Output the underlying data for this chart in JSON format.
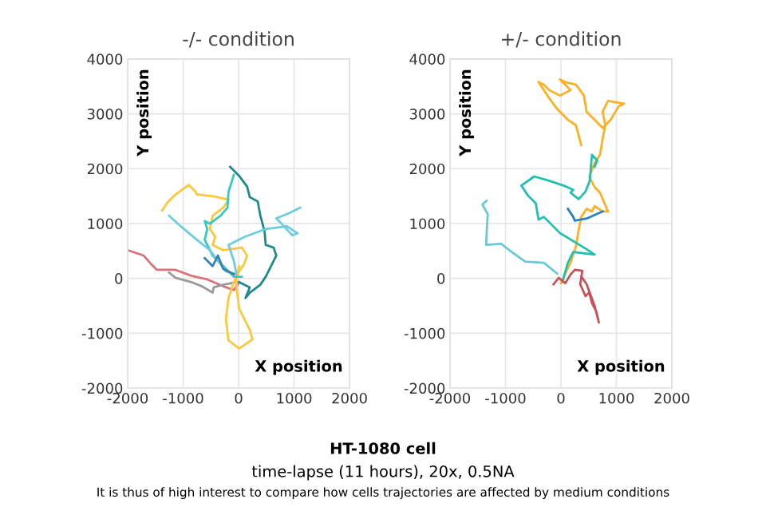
{
  "chart_data": [
    {
      "type": "line",
      "title": "-/- condition",
      "xlabel": "X position",
      "ylabel": "Y position",
      "xlim": [
        -2000,
        2000
      ],
      "ylim": [
        -2000,
        4000
      ],
      "xticks": [
        -2000,
        -1000,
        0,
        1000,
        2000
      ],
      "yticks": [
        -2000,
        -1000,
        0,
        1000,
        2000,
        3000,
        4000
      ],
      "grid": true,
      "marker": "none",
      "line_style": "solid",
      "annotations": [
        "HT-1080 cell",
        "time-lapse (11 hours), 20x, 0.5NA",
        "It is thus of high interest to compare how cells trajectories are affected by medium conditions"
      ],
      "series": [
        {
          "color": "#d9727a",
          "x": [
            -2000,
            -1713,
            -1569,
            -1474,
            -1139,
            -852,
            -565,
            -278,
            -86,
            10
          ],
          "values": [
            513,
            416,
            252,
            155,
            155,
            48,
            -19,
            -145,
            -213,
            -68
          ]
        },
        {
          "color": "#9a9a9a",
          "x": [
            -1254,
            -1139,
            -852,
            -660,
            -469,
            -450,
            -278,
            -38
          ],
          "values": [
            106,
            10,
            -68,
            -145,
            -261,
            -164,
            -116,
            -68
          ]
        },
        {
          "color": "#ffc83a",
          "x": [
            -1378,
            -1282,
            -1139,
            -900,
            -775,
            -756,
            -469,
            -182,
            -278,
            -469,
            -517,
            -421,
            -469,
            -278,
            57,
            153,
            105,
            10,
            -86,
            -182,
            -230,
            -182,
            10,
            249,
            201,
            10,
            -38,
            -38,
            10
          ],
          "values": [
            1239,
            1384,
            1530,
            1704,
            1578,
            1530,
            1500,
            1433,
            1288,
            1142,
            900,
            755,
            610,
            513,
            561,
            416,
            271,
            126,
            -68,
            -358,
            -745,
            -1133,
            -1278,
            -1113,
            -939,
            -552,
            -165,
            29,
            223
          ]
        },
        {
          "color": "#1f8a8a",
          "x": [
            -153,
            10,
            153,
            201,
            344,
            392,
            469,
            488,
            632,
            679,
            584,
            488,
            392,
            201,
            124,
            201,
            10
          ],
          "values": [
            2033,
            1868,
            1675,
            1481,
            1404,
            1142,
            852,
            610,
            561,
            416,
            223,
            29,
            -116,
            -261,
            -358,
            -165,
            -68
          ]
        },
        {
          "color": "#35c9c0",
          "x": [
            -86,
            -182,
            -201,
            -325,
            -517,
            -612,
            -565,
            -612,
            -469,
            -278,
            -86,
            57
          ],
          "values": [
            1888,
            1578,
            1288,
            1142,
            997,
            1045,
            900,
            707,
            416,
            223,
            29,
            29
          ]
        },
        {
          "color": "#6dcde0",
          "x": [
            -1254,
            -1043,
            -756,
            -517,
            -373,
            -230,
            -38,
            -86,
            -182,
            105,
            488,
            871,
            1062,
            967,
            775,
            679,
            919,
            1110
          ],
          "values": [
            1142,
            949,
            707,
            513,
            319,
            126,
            77,
            319,
            610,
            755,
            900,
            949,
            823,
            784,
            997,
            1094,
            1191,
            1288
          ]
        },
        {
          "color": "#3a80b0",
          "x": [
            -612,
            -469,
            -373,
            -278,
            -86
          ],
          "values": [
            368,
            223,
            416,
            174,
            77
          ]
        }
      ]
    },
    {
      "type": "line",
      "title": "+/- condition",
      "xlabel": "X position",
      "ylabel": "Y position",
      "xlim": [
        -2000,
        2000
      ],
      "ylim": [
        -2000,
        4000
      ],
      "xticks": [
        -2000,
        -1000,
        0,
        1000,
        2000
      ],
      "yticks": [
        -2000,
        -1000,
        0,
        1000,
        2000,
        3000,
        4000
      ],
      "grid": true,
      "marker": "none",
      "line_style": "solid",
      "series": [
        {
          "color": "#ffb020",
          "x": [
            0,
            77,
            173,
            270,
            318,
            366,
            463,
            559,
            607,
            752,
            848,
            704,
            607,
            511,
            607,
            704,
            752,
            800,
            752,
            848,
            1137,
            1041,
            896,
            752,
            559,
            463,
            414,
            270,
            77,
            -19,
            173,
            -19,
            -212,
            -308,
            -405,
            -308,
            -212,
            -67,
            125,
            270,
            366
          ],
          "values": [
            -88,
            88,
            285,
            580,
            875,
            1121,
            1268,
            1219,
            1318,
            1219,
            1219,
            1563,
            1662,
            1858,
            2104,
            2252,
            2547,
            2793,
            3038,
            3235,
            3186,
            3137,
            2891,
            2743,
            2940,
            3038,
            3333,
            3530,
            3579,
            3628,
            3432,
            3333,
            3432,
            3530,
            3579,
            3432,
            3284,
            3087,
            2891,
            2793,
            2429
          ]
        },
        {
          "color": "#20c0b0",
          "x": [
            29,
            125,
            221,
            607,
            463,
            -19,
            -308,
            -405,
            -453,
            -598,
            -713,
            -482,
            -212,
            77,
            221,
            173,
            318,
            443,
            520,
            559,
            655,
            607
          ],
          "values": [
            -59,
            285,
            482,
            433,
            531,
            826,
            1121,
            1072,
            1367,
            1514,
            1691,
            1858,
            1780,
            1681,
            1613,
            1563,
            1445,
            1583,
            1780,
            2252,
            2154,
            2035
          ]
        },
        {
          "color": "#6cc8d8",
          "x": [
            -67,
            -308,
            -646,
            -887,
            -1079,
            -1349,
            -1340,
            -1320,
            -1417,
            -1340
          ],
          "values": [
            88,
            285,
            305,
            482,
            629,
            610,
            826,
            1170,
            1347,
            1416
          ]
        },
        {
          "color": "#2a80c8",
          "x": [
            125,
            221,
            250,
            463,
            752
          ],
          "values": [
            1268,
            1121,
            1052,
            1091,
            1219
          ]
        },
        {
          "color": "#c8505a",
          "x": [
            -135,
            -39,
            77,
            173,
            250,
            386,
            347,
            443,
            511,
            559,
            636,
            684,
            607,
            463,
            366
          ],
          "values": [
            -108,
            10,
            -88,
            69,
            157,
            138,
            -108,
            -324,
            -256,
            -452,
            -600,
            -806,
            -501,
            -108,
            39
          ]
        }
      ]
    }
  ]
}
